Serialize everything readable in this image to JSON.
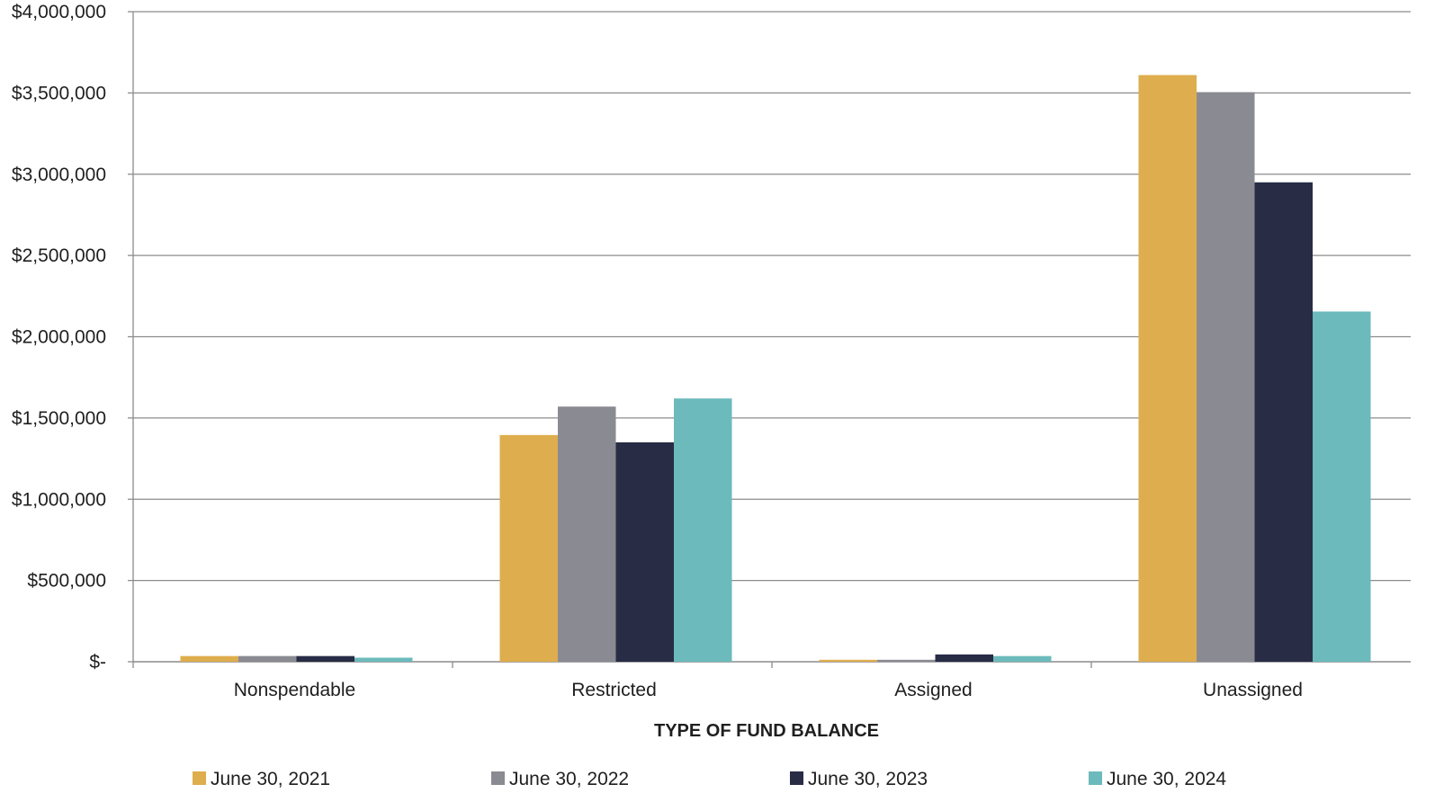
{
  "chart_data": {
    "type": "bar",
    "title": "",
    "xlabel": "TYPE OF FUND BALANCE",
    "ylabel": "",
    "categories": [
      "Nonspendable",
      "Restricted",
      "Assigned",
      "Unassigned"
    ],
    "ylim": [
      0,
      4000000
    ],
    "y_ticks": [
      0,
      500000,
      1000000,
      1500000,
      2000000,
      2500000,
      3000000,
      3500000,
      4000000
    ],
    "y_tick_labels": [
      "$-",
      "$500,000",
      "$1,000,000",
      "$1,500,000",
      "$2,000,000",
      "$2,500,000",
      "$3,000,000",
      "$3,500,000",
      "$4,000,000"
    ],
    "grid": true,
    "legend_position": "bottom",
    "series": [
      {
        "name": "June 30, 2021",
        "color": "#DEAD4D",
        "values": [
          35000,
          1395000,
          12000,
          3610000
        ]
      },
      {
        "name": "June 30, 2022",
        "color": "#8A8A92",
        "values": [
          35000,
          1570000,
          12000,
          3505000
        ]
      },
      {
        "name": "June 30, 2023",
        "color": "#282C45",
        "values": [
          35000,
          1350000,
          45000,
          2950000
        ]
      },
      {
        "name": "June 30, 2024",
        "color": "#6CBABB",
        "values": [
          25000,
          1620000,
          35000,
          2155000
        ]
      }
    ]
  }
}
